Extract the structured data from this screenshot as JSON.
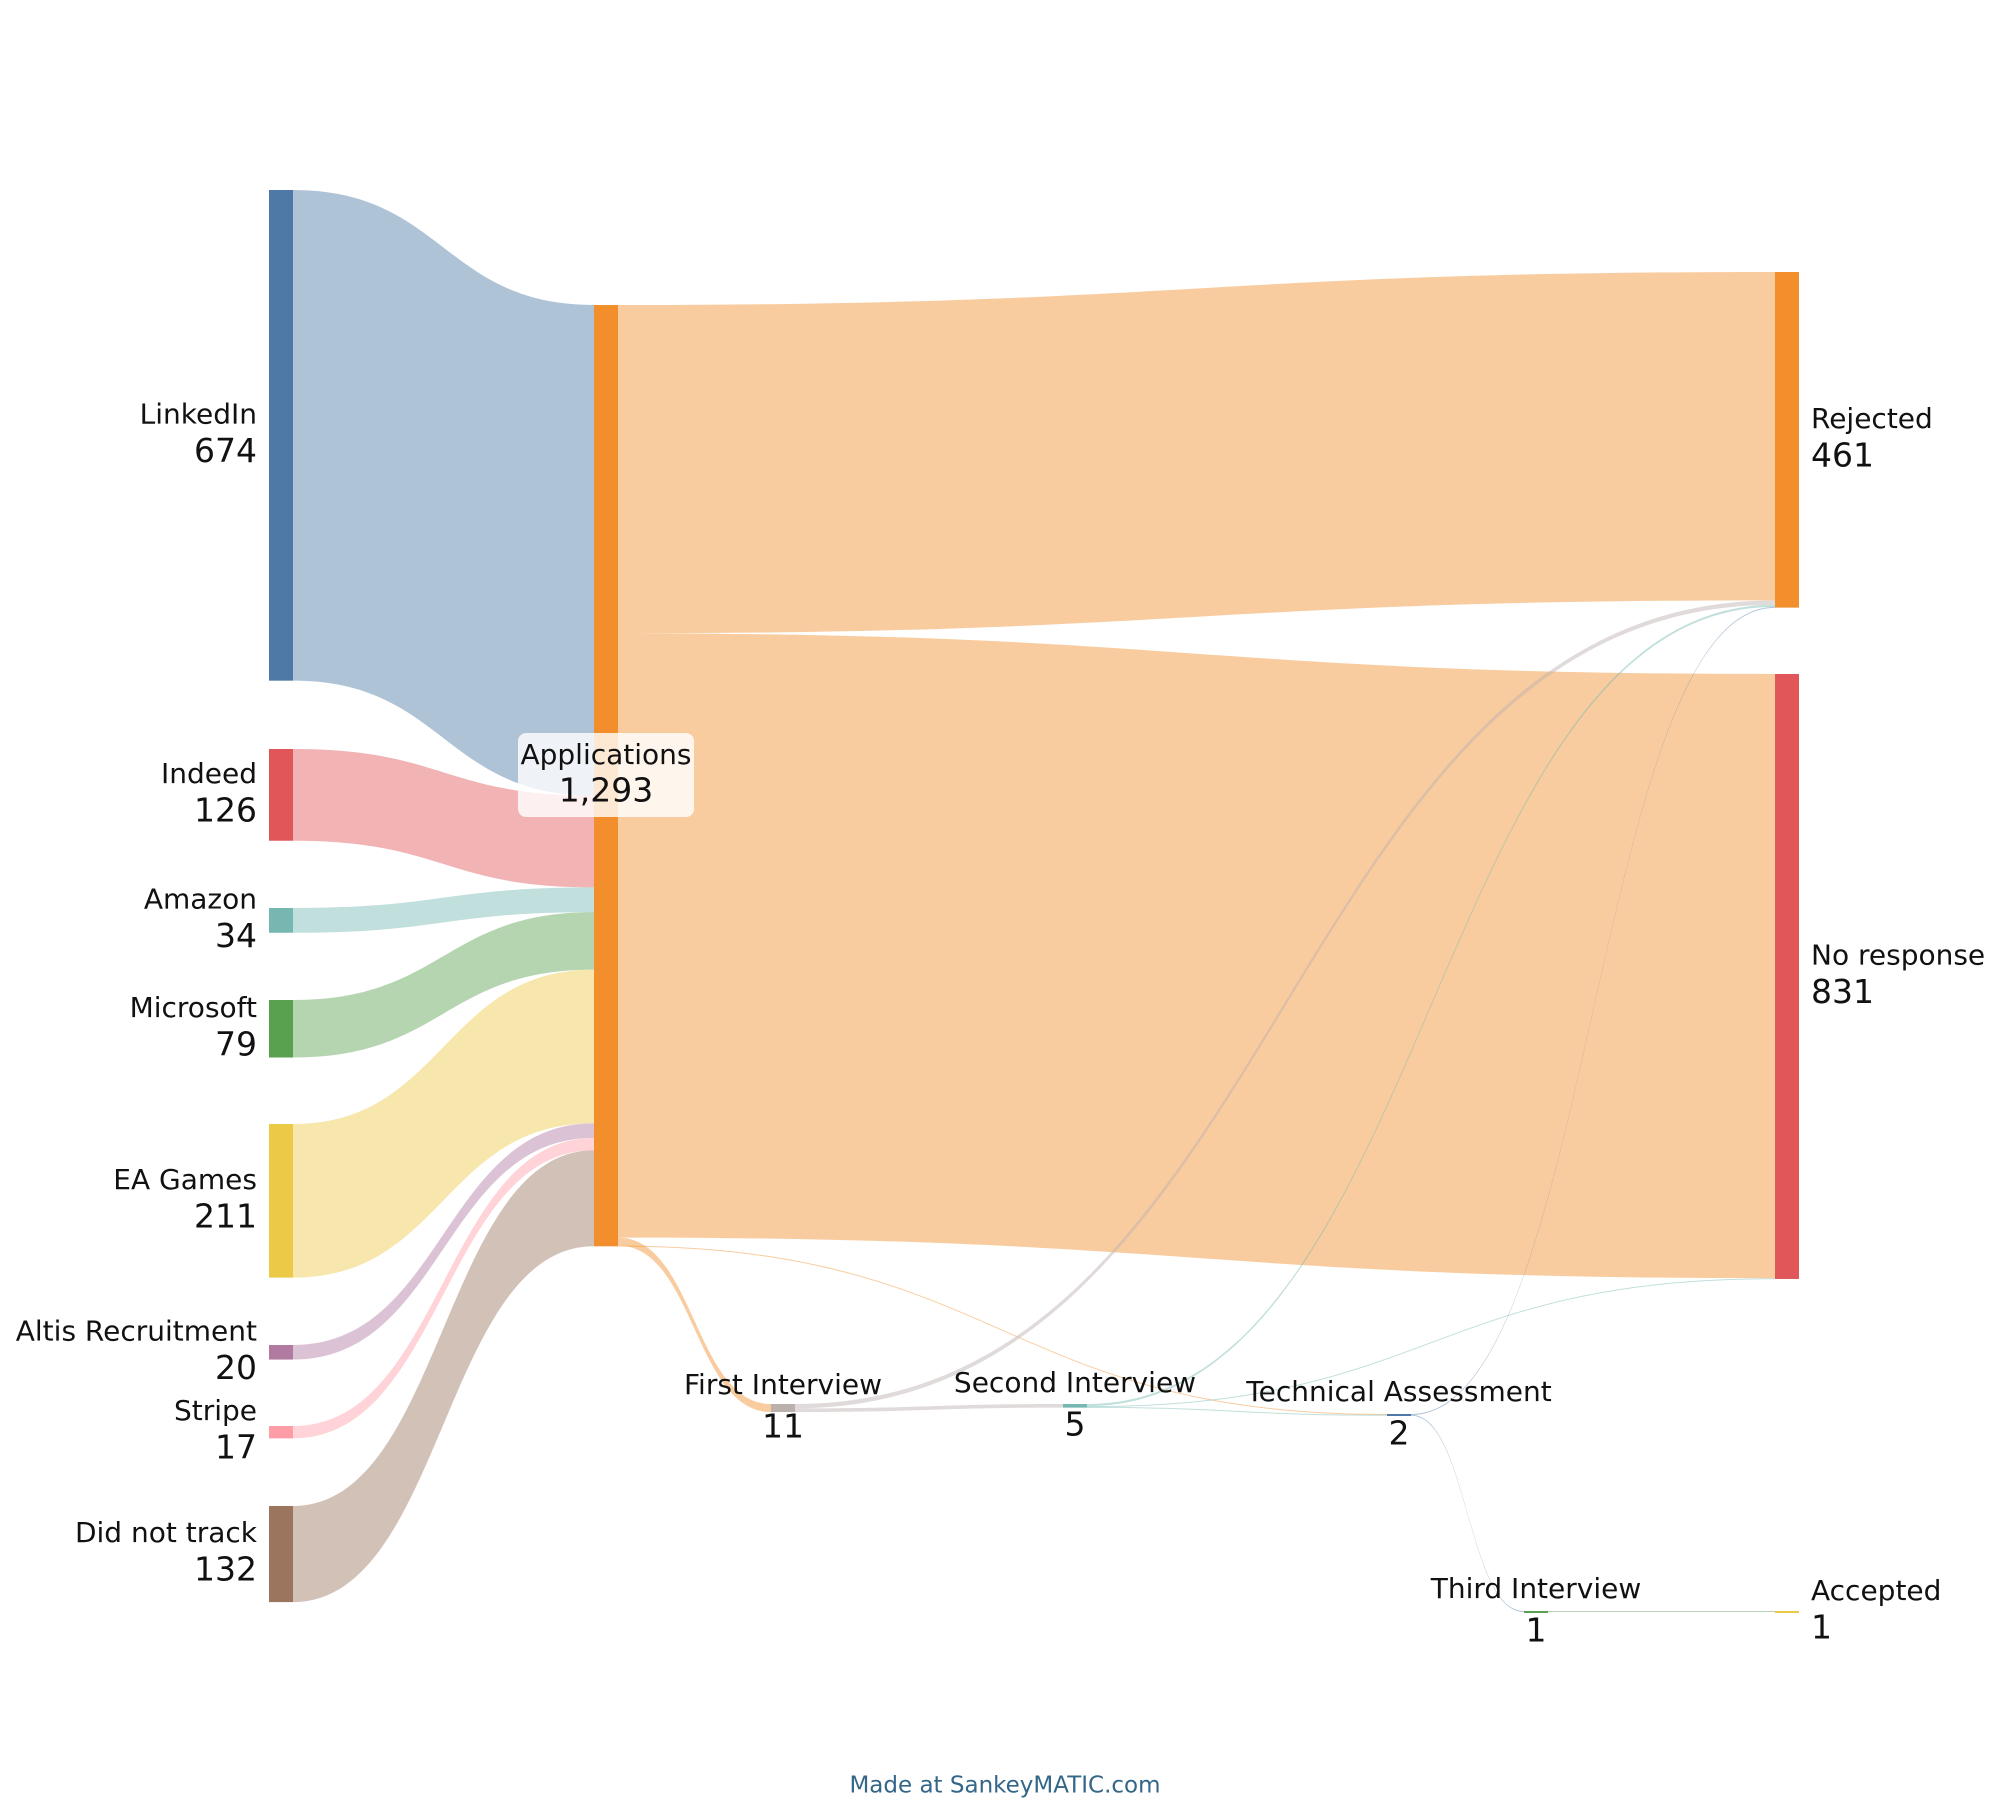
{
  "chart_data": {
    "type": "sankey",
    "nodes": [
      {
        "name": "LinkedIn",
        "color": "#4e79a7"
      },
      {
        "name": "Indeed",
        "color": "#e15759"
      },
      {
        "name": "Amazon",
        "color": "#76b7b2"
      },
      {
        "name": "Microsoft",
        "color": "#59a14f"
      },
      {
        "name": "EA Games",
        "color": "#edc948"
      },
      {
        "name": "Altis Recruitment",
        "color": "#b07aa1"
      },
      {
        "name": "Stripe",
        "color": "#ff9da7"
      },
      {
        "name": "Did not track",
        "color": "#9c755f"
      },
      {
        "name": "Applications",
        "color": "#f28e2b"
      },
      {
        "name": "First Interview",
        "color": "#bab0ac"
      },
      {
        "name": "Second Interview",
        "color": "#76b7b2"
      },
      {
        "name": "Technical Assessment",
        "color": "#4e79a7"
      },
      {
        "name": "Third Interview",
        "color": "#59a14f"
      },
      {
        "name": "Rejected",
        "color": "#f28e2b"
      },
      {
        "name": "No response",
        "color": "#e15759"
      },
      {
        "name": "Accepted",
        "color": "#edc948"
      }
    ],
    "values": [
      674,
      126,
      34,
      79,
      211,
      20,
      17,
      132,
      1293,
      11,
      5,
      2,
      1,
      461,
      831,
      1
    ],
    "value_labels": [
      "674",
      "126",
      "34",
      "79",
      "211",
      "20",
      "17",
      "132",
      "1,293",
      "11",
      "5",
      "2",
      "1",
      "461",
      "831",
      "1"
    ],
    "links": [
      {
        "source": "LinkedIn",
        "target": "Applications",
        "value": 674
      },
      {
        "source": "Indeed",
        "target": "Applications",
        "value": 126
      },
      {
        "source": "Amazon",
        "target": "Applications",
        "value": 34
      },
      {
        "source": "Microsoft",
        "target": "Applications",
        "value": 79
      },
      {
        "source": "EA Games",
        "target": "Applications",
        "value": 211
      },
      {
        "source": "Altis Recruitment",
        "target": "Applications",
        "value": 20
      },
      {
        "source": "Stripe",
        "target": "Applications",
        "value": 17
      },
      {
        "source": "Did not track",
        "target": "Applications",
        "value": 132
      },
      {
        "source": "Applications",
        "target": "Rejected",
        "value": 451
      },
      {
        "source": "Applications",
        "target": "No response",
        "value": 830
      },
      {
        "source": "Applications",
        "target": "First Interview",
        "value": 11
      },
      {
        "source": "Applications",
        "target": "Technical Assessment",
        "value": 1
      },
      {
        "source": "First Interview",
        "target": "Rejected",
        "value": 6
      },
      {
        "source": "First Interview",
        "target": "Second Interview",
        "value": 5
      },
      {
        "source": "Second Interview",
        "target": "Rejected",
        "value": 3
      },
      {
        "source": "Second Interview",
        "target": "No response",
        "value": 1
      },
      {
        "source": "Second Interview",
        "target": "Technical Assessment",
        "value": 1
      },
      {
        "source": "Technical Assessment",
        "target": "Rejected",
        "value": 1
      },
      {
        "source": "Technical Assessment",
        "target": "Third Interview",
        "value": 1
      },
      {
        "source": "Third Interview",
        "target": "Accepted",
        "value": 1
      }
    ],
    "footer": "Made at SankeyMATIC.com"
  }
}
